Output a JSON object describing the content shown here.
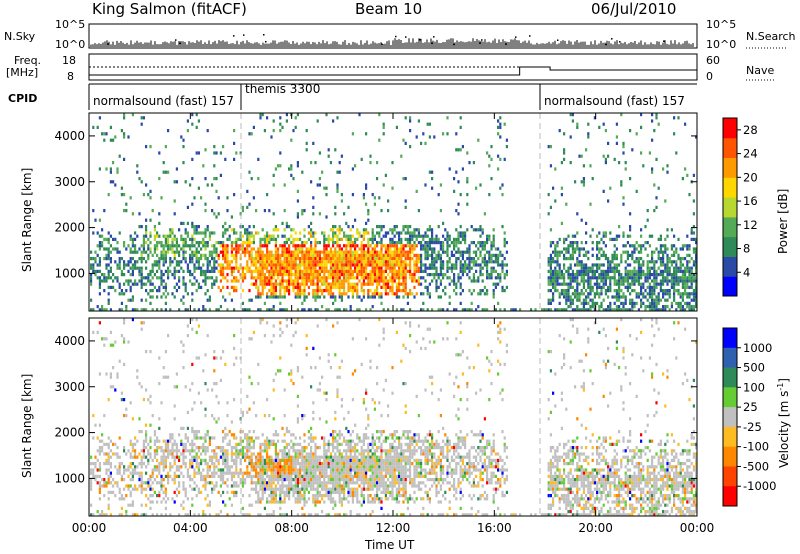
{
  "header": {
    "station": "King Salmon (fitACF)",
    "beam": "Beam 10",
    "date": "06/Jul/2010"
  },
  "strip": {
    "nsky_label": "N.Sky",
    "nsearch_label": "N.Search",
    "nsky_ticks": [
      "10^5",
      "10^0"
    ],
    "freq_label_1": "Freq.",
    "freq_label_2": "[MHz]",
    "freq_ticks": [
      "18",
      "8"
    ],
    "nave_label": "Nave",
    "nave_ticks": [
      "60",
      "0"
    ],
    "cpid_label": "CPID",
    "cpid_segments": [
      "normalsound (fast) 157",
      "themis 3300",
      "normalsound (fast) 157"
    ]
  },
  "colors": {
    "power_scale": [
      "#0000ff",
      "#2a4aa8",
      "#2e8b57",
      "#55aa55",
      "#b8d830",
      "#ffd700",
      "#ff9900",
      "#ff5500",
      "#ff0000"
    ],
    "velocity_scale": [
      "#0000ff",
      "#3060b0",
      "#2e8b57",
      "#66cc33",
      "#c0c0c0",
      "#ffbb22",
      "#ff8800",
      "#ff4400",
      "#ff0000"
    ]
  },
  "chart_data": [
    {
      "type": "heatmap",
      "name": "power",
      "ylabel": "Slant Range [km]",
      "xlabel": "Time UT",
      "x_ticks": [
        "00:00",
        "04:00",
        "08:00",
        "12:00",
        "16:00",
        "20:00",
        "00:00"
      ],
      "y_ticks": [
        1000,
        2000,
        3000,
        4000
      ],
      "xlim_hours": [
        0,
        24
      ],
      "ylim_km": [
        180,
        4500
      ],
      "colorbar_label": "Power [dB]",
      "colorbar_ticks": [
        4,
        8,
        12,
        16,
        20,
        24,
        28
      ],
      "colorbar_range": [
        0,
        30
      ]
    },
    {
      "type": "heatmap",
      "name": "velocity",
      "ylabel": "Slant Range [km]",
      "xlabel": "Time UT",
      "x_ticks": [
        "00:00",
        "04:00",
        "08:00",
        "12:00",
        "16:00",
        "20:00",
        "00:00"
      ],
      "y_ticks": [
        1000,
        2000,
        3000,
        4000
      ],
      "xlim_hours": [
        0,
        24
      ],
      "ylim_km": [
        180,
        4500
      ],
      "colorbar_label": "Velocity [m s^-1]",
      "colorbar_ticks": [
        "1000",
        "500",
        "100",
        "25",
        "-25",
        "-100",
        "-500",
        "-1000"
      ]
    }
  ]
}
